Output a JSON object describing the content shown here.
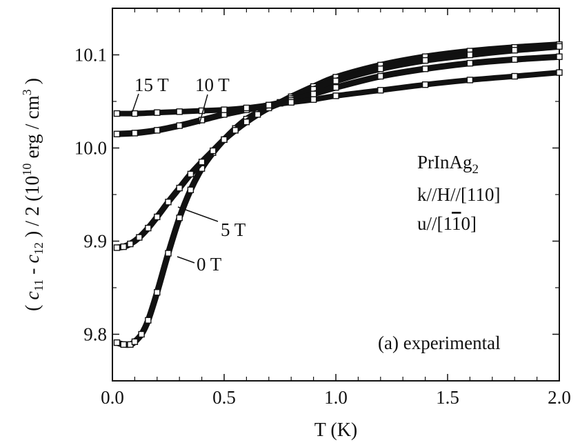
{
  "chart_data": {
    "type": "scatter",
    "xlabel": "T (K)",
    "ylabel": {
      "open": "(",
      "c": "c",
      "sub11": "11",
      "minus": "-",
      "sub12": "12",
      "rest": ") / 2 (10",
      "sup10": "10",
      "unit": "erg / cm",
      "sup3": "3",
      "close": ")"
    },
    "xlim": [
      0.0,
      2.0
    ],
    "ylim": [
      9.75,
      10.15
    ],
    "x_ticks": [
      "0.0",
      "0.5",
      "1.0",
      "1.5",
      "2.0"
    ],
    "y_ticks": [
      "9.8",
      "9.9",
      "10.0",
      "10.1"
    ],
    "x_tick_values": [
      0.0,
      0.5,
      1.0,
      1.5,
      2.0
    ],
    "y_tick_values": [
      9.8,
      9.9,
      10.0,
      10.1
    ],
    "grid": false,
    "annotation": {
      "compound": "PrInAg",
      "compound_sub": "2",
      "line1": "k//H//[110]",
      "line2_pre": "u//[1",
      "line2_bar": "1",
      "line2_post": "0]",
      "panel": "(a) experimental"
    },
    "series": [
      {
        "name": "0 T",
        "x": [
          0.02,
          0.05,
          0.08,
          0.1,
          0.13,
          0.16,
          0.2,
          0.25,
          0.3,
          0.35,
          0.4,
          0.45,
          0.5,
          0.55,
          0.6,
          0.65,
          0.7,
          0.75,
          0.8,
          0.9,
          1.0,
          1.2,
          1.4,
          1.6,
          1.8,
          2.0
        ],
        "y": [
          9.791,
          9.789,
          9.789,
          9.792,
          9.8,
          9.815,
          9.845,
          9.887,
          9.925,
          9.955,
          9.978,
          9.995,
          10.009,
          10.021,
          10.031,
          10.038,
          10.044,
          10.049,
          10.055,
          10.066,
          10.076,
          10.089,
          10.098,
          10.104,
          10.108,
          10.111
        ]
      },
      {
        "name": "5 T",
        "x": [
          0.02,
          0.05,
          0.08,
          0.12,
          0.16,
          0.2,
          0.25,
          0.3,
          0.35,
          0.4,
          0.45,
          0.5,
          0.55,
          0.6,
          0.65,
          0.7,
          0.75,
          0.8,
          0.9,
          1.0,
          1.2,
          1.4,
          1.6,
          1.8,
          2.0
        ],
        "y": [
          9.893,
          9.894,
          9.897,
          9.904,
          9.914,
          9.926,
          9.942,
          9.957,
          9.972,
          9.985,
          9.997,
          10.009,
          10.019,
          10.028,
          10.036,
          10.043,
          10.048,
          10.053,
          10.063,
          10.072,
          10.085,
          10.094,
          10.1,
          10.105,
          10.109
        ]
      },
      {
        "name": "10 T",
        "x": [
          0.02,
          0.1,
          0.2,
          0.3,
          0.4,
          0.5,
          0.6,
          0.7,
          0.8,
          0.9,
          1.0,
          1.2,
          1.4,
          1.6,
          1.8,
          2.0
        ],
        "y": [
          10.015,
          10.016,
          10.019,
          10.024,
          10.03,
          10.036,
          10.041,
          10.046,
          10.051,
          10.058,
          10.065,
          10.077,
          10.085,
          10.091,
          10.095,
          10.098
        ]
      },
      {
        "name": "15 T",
        "x": [
          0.02,
          0.1,
          0.2,
          0.3,
          0.4,
          0.5,
          0.6,
          0.7,
          0.8,
          0.9,
          1.0,
          1.2,
          1.4,
          1.6,
          1.8,
          2.0
        ],
        "y": [
          10.037,
          10.037,
          10.038,
          10.039,
          10.04,
          10.041,
          10.043,
          10.046,
          10.049,
          10.052,
          10.056,
          10.062,
          10.068,
          10.073,
          10.077,
          10.081
        ]
      }
    ]
  }
}
